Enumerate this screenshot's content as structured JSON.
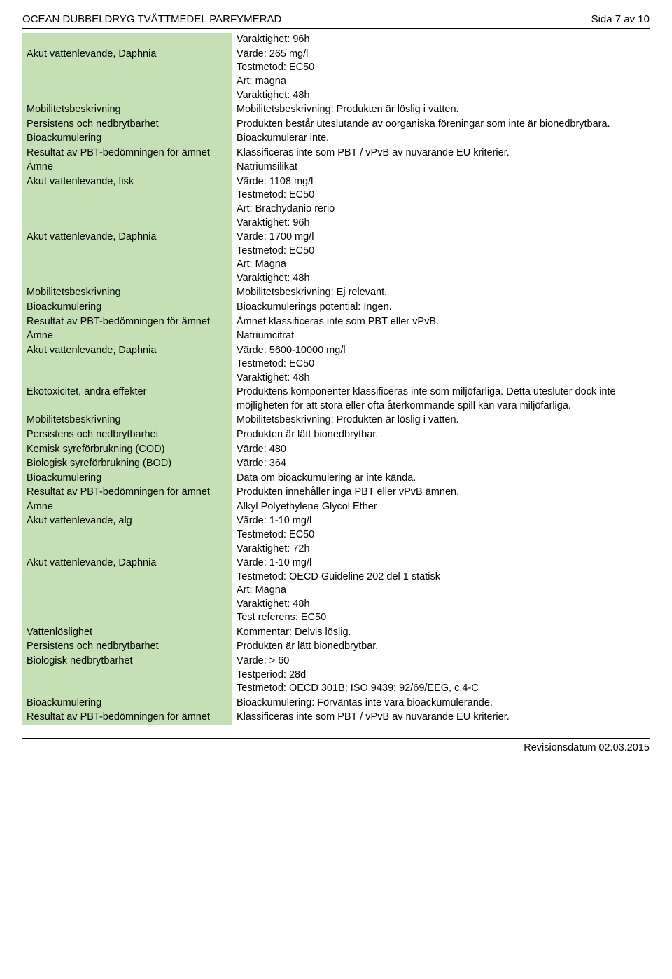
{
  "header": {
    "title": "OCEAN DUBBELDRYG TVÄTTMEDEL PARFYMERAD",
    "page": "Sida 7 av 10"
  },
  "footer": {
    "revision": "Revisionsdatum 02.03.2015"
  },
  "style": {
    "row_bg": "#c4e0b4",
    "rule_color": "#000000",
    "font_family": "Arial",
    "font_size_pt": 11
  },
  "rows": [
    {
      "key": "",
      "lines": [
        "Varaktighet: 96h"
      ]
    },
    {
      "key": "Akut vattenlevande, Daphnia",
      "lines": [
        "Värde: 265 mg/l",
        "Testmetod: EC50",
        "Art: magna",
        "Varaktighet: 48h"
      ]
    },
    {
      "key": "Mobilitetsbeskrivning",
      "lines": [
        "Mobilitetsbeskrivning: Produkten är löslig i vatten."
      ]
    },
    {
      "key": "Persistens och nedbrytbarhet",
      "lines": [
        "Produkten består uteslutande av oorganiska föreningar som inte är bionedbrytbara."
      ]
    },
    {
      "key": "Bioackumulering",
      "lines": [
        "Bioackumulerar inte."
      ]
    },
    {
      "key": "Resultat av PBT-bedömningen för ämnet",
      "lines": [
        "Klassificeras inte som PBT / vPvB av nuvarande EU kriterier."
      ]
    },
    {
      "key": "Ämne",
      "lines": [
        "Natriumsilikat"
      ]
    },
    {
      "key": "Akut vattenlevande, fisk",
      "lines": [
        "Värde: 1108 mg/l",
        "Testmetod: EC50",
        "Art: Brachydanio rerio",
        "Varaktighet: 96h"
      ]
    },
    {
      "key": "Akut vattenlevande, Daphnia",
      "lines": [
        "Värde: 1700 mg/l",
        "Testmetod: EC50",
        "Art: Magna",
        "Varaktighet: 48h"
      ]
    },
    {
      "key": "Mobilitetsbeskrivning",
      "lines": [
        "Mobilitetsbeskrivning: Ej relevant."
      ]
    },
    {
      "key": "Bioackumulering",
      "lines": [
        "Bioackumulerings potential: Ingen."
      ]
    },
    {
      "key": "Resultat av PBT-bedömningen för ämnet",
      "lines": [
        "Ämnet klassificeras inte som PBT eller vPvB."
      ]
    },
    {
      "key": "Ämne",
      "lines": [
        "Natriumcitrat"
      ]
    },
    {
      "key": "Akut vattenlevande, Daphnia",
      "lines": [
        "Värde: 5600-10000 mg/l",
        "Testmetod: EC50",
        "Varaktighet: 48h"
      ]
    },
    {
      "key": "Ekotoxicitet, andra effekter",
      "lines": [
        "Produktens komponenter klassificeras inte som miljöfarliga. Detta utesluter dock inte möjligheten för att stora eller ofta återkommande spill kan vara miljöfarliga."
      ]
    },
    {
      "key": "Mobilitetsbeskrivning",
      "lines": [
        "Mobilitetsbeskrivning: Produkten är löslig i vatten."
      ]
    },
    {
      "key": "Persistens och nedbrytbarhet",
      "lines": [
        "Produkten är lätt bionedbrytbar."
      ]
    },
    {
      "key": "Kemisk syreförbrukning (COD)",
      "lines": [
        "Värde: 480"
      ]
    },
    {
      "key": "Biologisk syreförbrukning (BOD)",
      "lines": [
        "Värde: 364"
      ]
    },
    {
      "key": "Bioackumulering",
      "lines": [
        "Data om bioackumulering är inte kända."
      ]
    },
    {
      "key": "Resultat av PBT-bedömningen för ämnet",
      "lines": [
        "Produkten innehåller inga PBT eller vPvB ämnen."
      ]
    },
    {
      "key": "Ämne",
      "lines": [
        "Alkyl Polyethylene Glycol Ether"
      ]
    },
    {
      "key": "Akut vattenlevande, alg",
      "lines": [
        "Värde: 1-10 mg/l",
        "Testmetod: EC50",
        "Varaktighet: 72h"
      ]
    },
    {
      "key": "Akut vattenlevande, Daphnia",
      "lines": [
        "Värde: 1-10 mg/l",
        "Testmetod: OECD Guideline 202 del 1 statisk",
        "Art: Magna",
        "Varaktighet: 48h",
        "Test referens: EC50"
      ]
    },
    {
      "key": "Vattenlöslighet",
      "lines": [
        "Kommentar: Delvis löslig."
      ]
    },
    {
      "key": "Persistens och nedbrytbarhet",
      "lines": [
        "Produkten är lätt bionedbrytbar."
      ]
    },
    {
      "key": "Biologisk nedbrytbarhet",
      "lines": [
        "Värde: > 60",
        "Testperiod: 28d",
        "Testmetod: OECD 301B; ISO 9439; 92/69/EEG, c.4-C"
      ]
    },
    {
      "key": "Bioackumulering",
      "lines": [
        "Bioackumulering: Förväntas inte vara bioackumulerande."
      ]
    },
    {
      "key": "Resultat av PBT-bedömningen för ämnet",
      "lines": [
        "Klassificeras inte som PBT / vPvB av nuvarande EU kriterier."
      ]
    }
  ]
}
